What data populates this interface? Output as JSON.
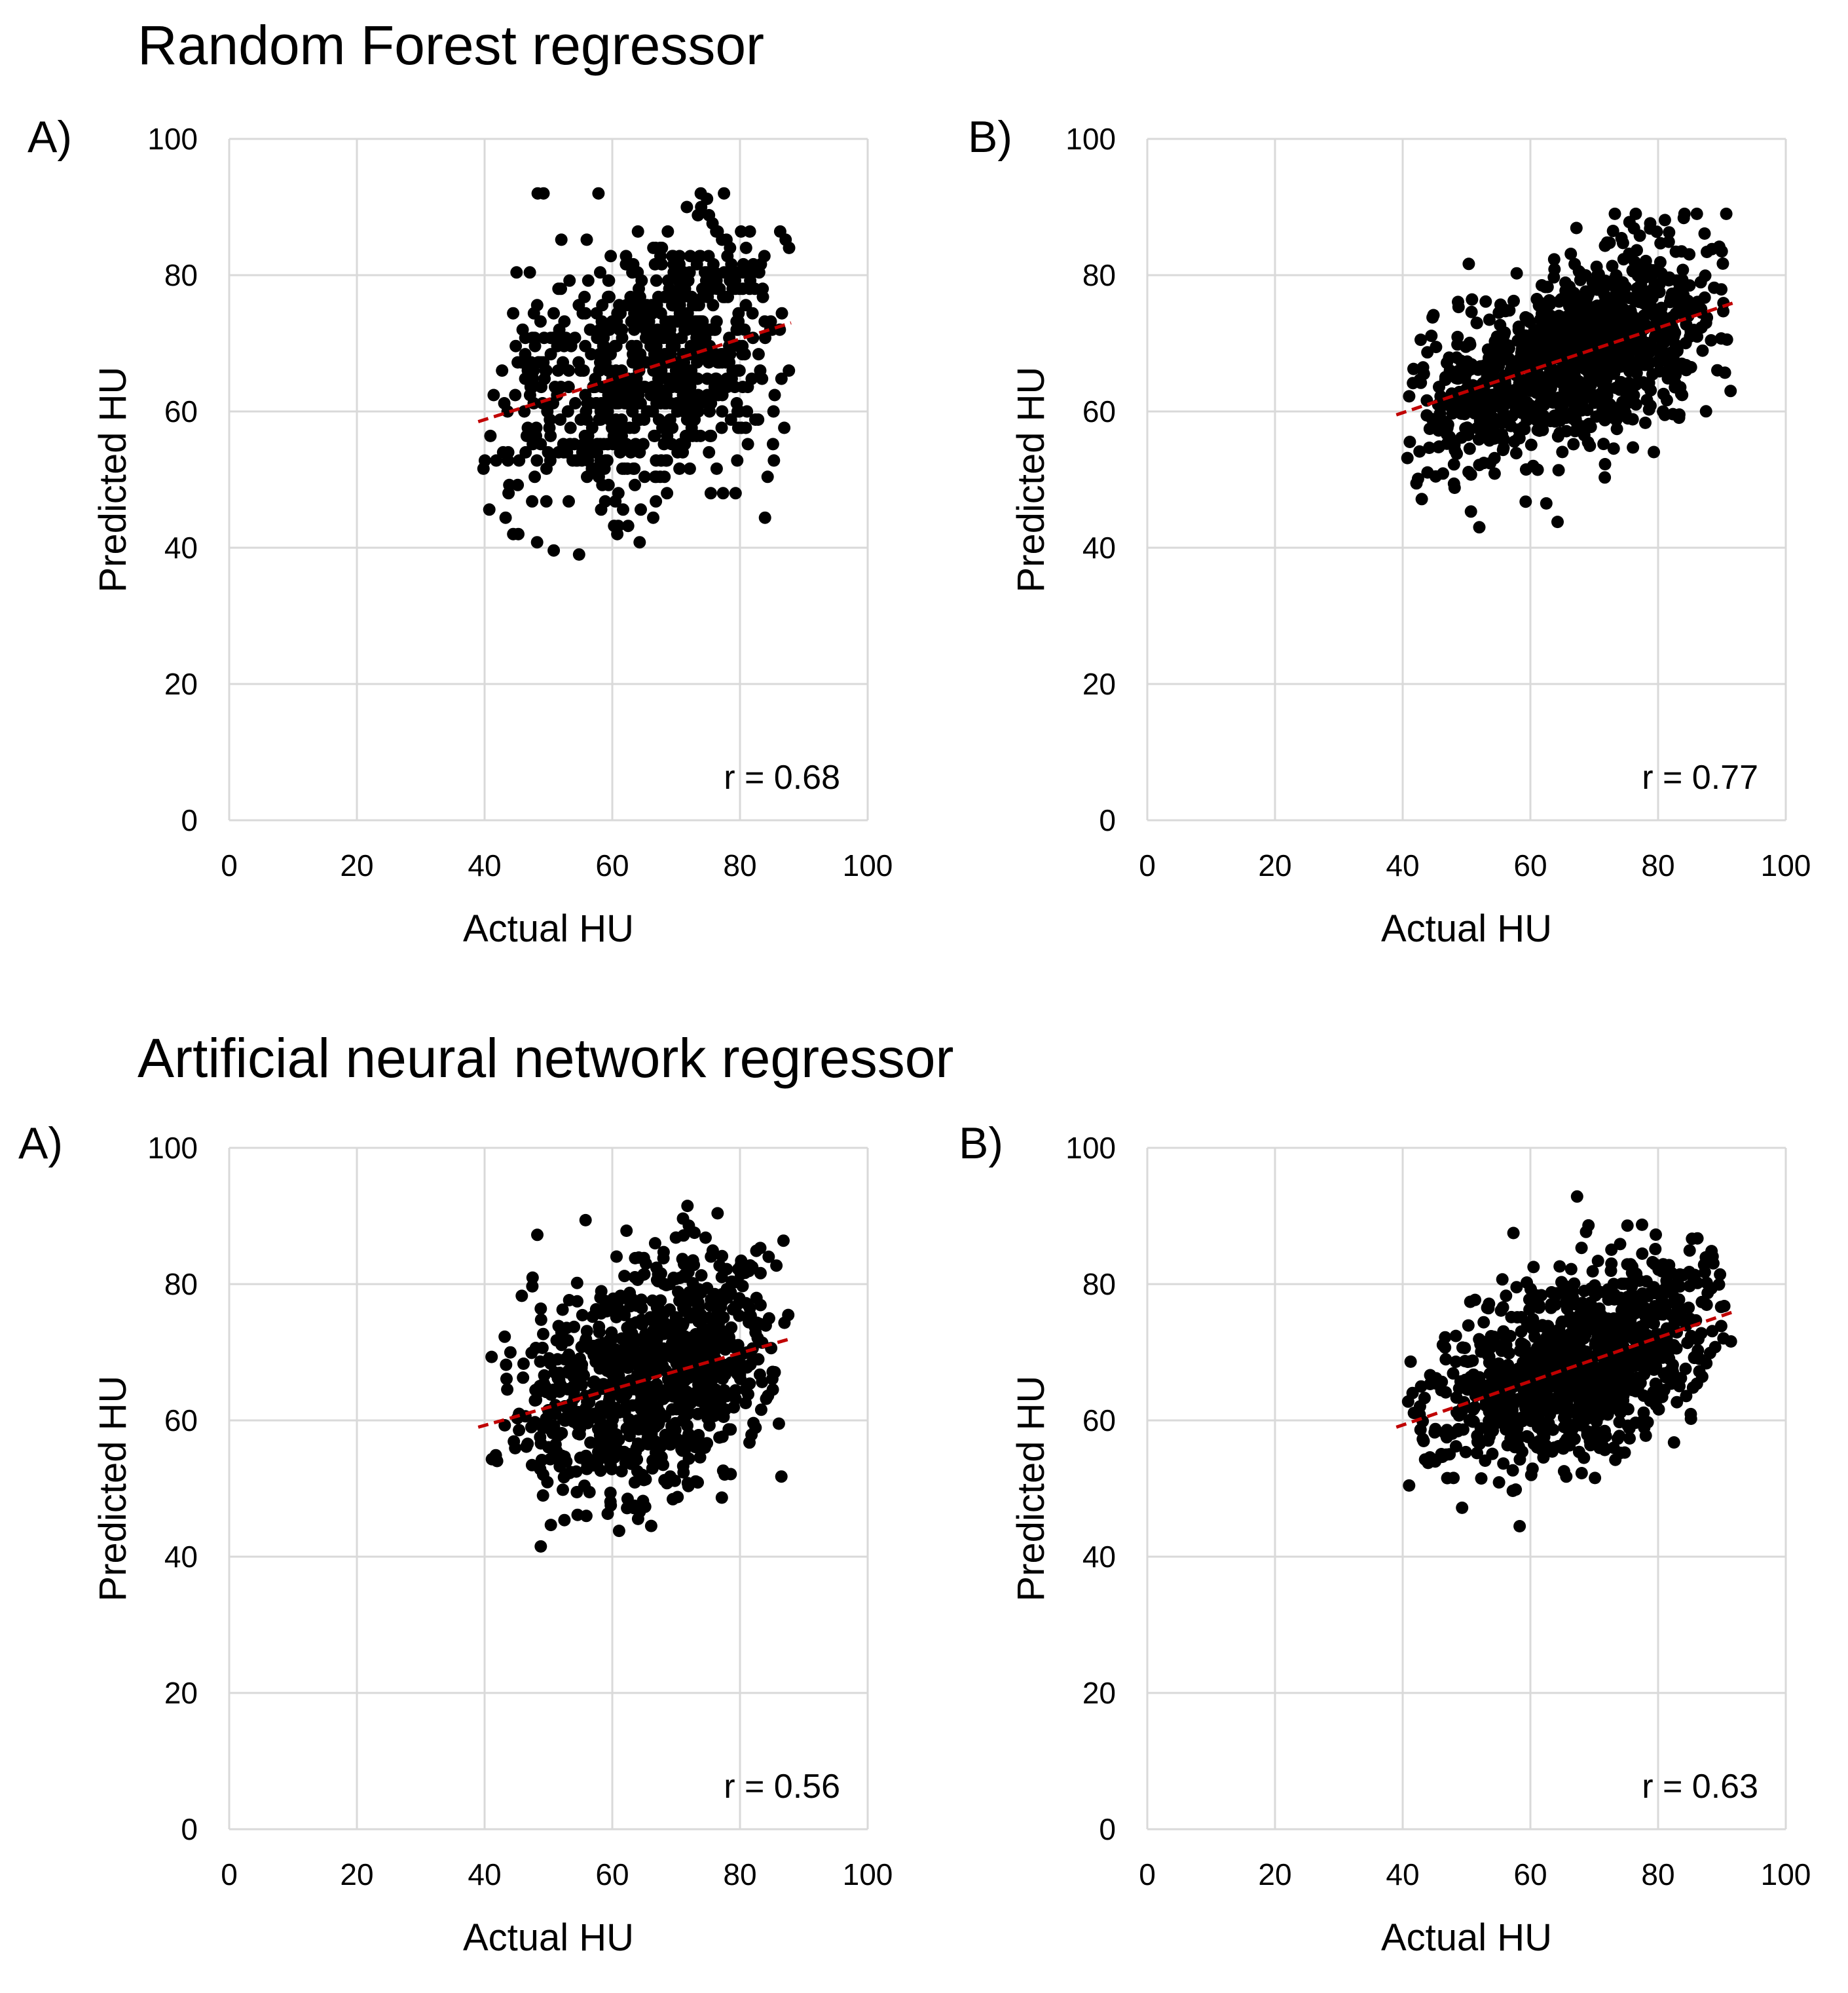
{
  "sections": [
    {
      "title": "Random Forest regressor"
    },
    {
      "title": "Artificial neural network regressor"
    }
  ],
  "chart_data": [
    {
      "type": "scatter",
      "panel_label": "A)",
      "xlabel": "Actual HU",
      "ylabel": "Predicted HU",
      "xlim": [
        0,
        100
      ],
      "ylim": [
        0,
        100
      ],
      "xticks": [
        0,
        20,
        40,
        60,
        80,
        100
      ],
      "yticks": [
        0,
        20,
        40,
        60,
        80,
        100
      ],
      "grid": true,
      "annotation": "r = 0.68",
      "trendline": {
        "x": [
          39,
          88
        ],
        "y": [
          58.5,
          73
        ]
      },
      "points": {
        "n": 750,
        "seed": 11,
        "x_range": [
          39,
          88
        ],
        "x_mode": 70,
        "slope": 0.3,
        "intercept": 47,
        "noise_sd": 10,
        "y_clip": [
          39,
          92
        ],
        "y_quantize": 1.2
      }
    },
    {
      "type": "scatter",
      "panel_label": "B)",
      "xlabel": "Actual HU",
      "ylabel": "Predicted HU",
      "xlim": [
        0,
        100
      ],
      "ylim": [
        0,
        100
      ],
      "xticks": [
        0,
        20,
        40,
        60,
        80,
        100
      ],
      "yticks": [
        0,
        20,
        40,
        60,
        80,
        100
      ],
      "grid": true,
      "annotation": "r = 0.77",
      "trendline": {
        "x": [
          39,
          92
        ],
        "y": [
          59.5,
          76
        ]
      },
      "points": {
        "n": 1100,
        "seed": 23,
        "x_range": [
          39,
          92
        ],
        "x_mode": 70,
        "slope": 0.31,
        "intercept": 47.5,
        "noise_sd": 6.5,
        "y_clip": [
          40,
          89
        ],
        "y_quantize": 0
      }
    },
    {
      "type": "scatter",
      "panel_label": "A)",
      "xlabel": "Actual HU",
      "ylabel": "Predicted HU",
      "xlim": [
        0,
        100
      ],
      "ylim": [
        0,
        100
      ],
      "xticks": [
        0,
        20,
        40,
        60,
        80,
        100
      ],
      "yticks": [
        0,
        20,
        40,
        60,
        80,
        100
      ],
      "grid": true,
      "annotation": "r = 0.56",
      "trendline": {
        "x": [
          39,
          88
        ],
        "y": [
          59,
          72
        ]
      },
      "points": {
        "n": 900,
        "seed": 37,
        "x_range": [
          39,
          88
        ],
        "x_mode": 70,
        "slope": 0.27,
        "intercept": 48.5,
        "noise_sd": 8.5,
        "y_clip": [
          26,
          96
        ],
        "y_quantize": 0
      }
    },
    {
      "type": "scatter",
      "panel_label": "B)",
      "xlabel": "Actual HU",
      "ylabel": "Predicted HU",
      "xlim": [
        0,
        100
      ],
      "ylim": [
        0,
        100
      ],
      "xticks": [
        0,
        20,
        40,
        60,
        80,
        100
      ],
      "yticks": [
        0,
        20,
        40,
        60,
        80,
        100
      ],
      "grid": true,
      "annotation": "r = 0.63",
      "trendline": {
        "x": [
          39,
          92
        ],
        "y": [
          59,
          76
        ]
      },
      "points": {
        "n": 1100,
        "seed": 51,
        "x_range": [
          39,
          92
        ],
        "x_mode": 70,
        "slope": 0.32,
        "intercept": 46.5,
        "noise_sd": 6.5,
        "y_clip": [
          33,
          95
        ],
        "y_quantize": 0
      }
    }
  ]
}
